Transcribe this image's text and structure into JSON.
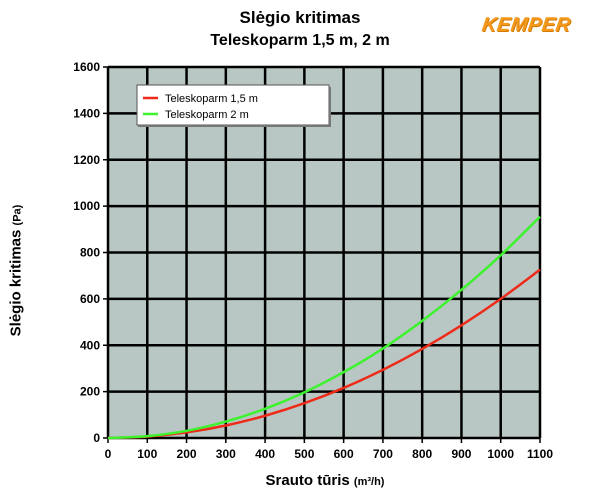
{
  "title": "Slėgio kritimas",
  "subtitle": "Teleskoparm 1,5 m, 2 m",
  "brand": "KEMPER",
  "colors": {
    "plot_bg": "#b8c7c4",
    "grid": "#000000",
    "series_1": "#ee2a18",
    "series_2": "#3df32e",
    "brand": "#f39a1e"
  },
  "chart_data": {
    "type": "line",
    "title": "Slėgio kritimas",
    "subtitle": "Teleskoparm 1,5 m, 2 m",
    "xlabel": "Srauto tūris",
    "xlabel_unit": "(m³/h)",
    "ylabel": "Slėgio kritimas",
    "ylabel_unit": "(Pa)",
    "xlim": [
      0,
      1100
    ],
    "ylim": [
      0,
      1600
    ],
    "xticks": [
      0,
      100,
      200,
      300,
      400,
      500,
      600,
      700,
      800,
      900,
      1000,
      1100
    ],
    "yticks": [
      0,
      200,
      400,
      600,
      800,
      1000,
      1200,
      1400,
      1600
    ],
    "grid": true,
    "legend_position": "top-left",
    "series": [
      {
        "name": "Teleskoparm 1,5 m",
        "color": "#ee2a18",
        "x": [
          0,
          100,
          200,
          300,
          400,
          500,
          600,
          700,
          800,
          900,
          1000,
          1100
        ],
        "y": [
          0,
          6,
          24,
          54,
          96,
          150,
          216,
          294,
          384,
          486,
          600,
          726
        ]
      },
      {
        "name": "Teleskoparm 2 m",
        "color": "#3df32e",
        "x": [
          0,
          100,
          200,
          300,
          400,
          500,
          600,
          700,
          800,
          900,
          1000,
          1100
        ],
        "y": [
          0,
          8,
          31,
          71,
          126,
          197,
          284,
          386,
          505,
          639,
          788,
          954
        ]
      }
    ]
  }
}
